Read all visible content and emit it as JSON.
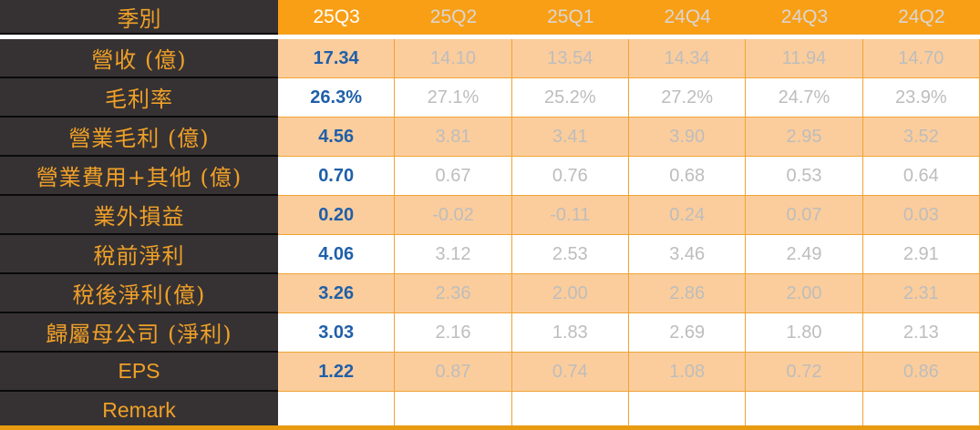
{
  "table": {
    "corner_label": "季別",
    "quarters": [
      "25Q3",
      "25Q2",
      "25Q1",
      "24Q4",
      "24Q3",
      "24Q2"
    ],
    "rows": [
      {
        "label": "營收 (億)",
        "values": [
          "17.34",
          "14.10",
          "13.54",
          "14.34",
          "11.94",
          "14.70"
        ]
      },
      {
        "label": "毛利率",
        "values": [
          "26.3%",
          "27.1%",
          "25.2%",
          "27.2%",
          "24.7%",
          "23.9%"
        ]
      },
      {
        "label": "營業毛利 (億)",
        "values": [
          "4.56",
          "3.81",
          "3.41",
          "3.90",
          "2.95",
          "3.52"
        ]
      },
      {
        "label": "營業費用+其他 (億)",
        "values": [
          "0.70",
          "0.67",
          "0.76",
          "0.68",
          "0.53",
          "0.64"
        ]
      },
      {
        "label": "業外損益",
        "values": [
          "0.20",
          "-0.02",
          "-0.11",
          "0.24",
          "0.07",
          "0.03"
        ]
      },
      {
        "label": "稅前淨利",
        "values": [
          "4.06",
          "3.12",
          "2.53",
          "3.46",
          "2.49",
          "2.91"
        ]
      },
      {
        "label": "稅後淨利(億)",
        "values": [
          "3.26",
          "2.36",
          "2.00",
          "2.86",
          "2.00",
          "2.31"
        ]
      },
      {
        "label": "歸屬母公司 (淨利)",
        "values": [
          "3.03",
          "2.16",
          "1.83",
          "2.69",
          "1.80",
          "2.13"
        ]
      },
      {
        "label": "EPS",
        "values": [
          "1.22",
          "0.87",
          "0.74",
          "1.08",
          "0.72",
          "0.86"
        ]
      },
      {
        "label": "Remark",
        "values": [
          "",
          "",
          "",
          "",
          "",
          ""
        ]
      }
    ],
    "colors": {
      "header_orange": "#F99F15",
      "row_peach": "#FBCD9C",
      "border_orange": "#F0A335",
      "label_bg_dark": "#363233",
      "label_text_orange": "#F0A028",
      "current_quarter_blue": "#1F5FA9",
      "past_value_gray": "#BDBDBD",
      "bottom_bar_orange": "#E89B10"
    }
  }
}
